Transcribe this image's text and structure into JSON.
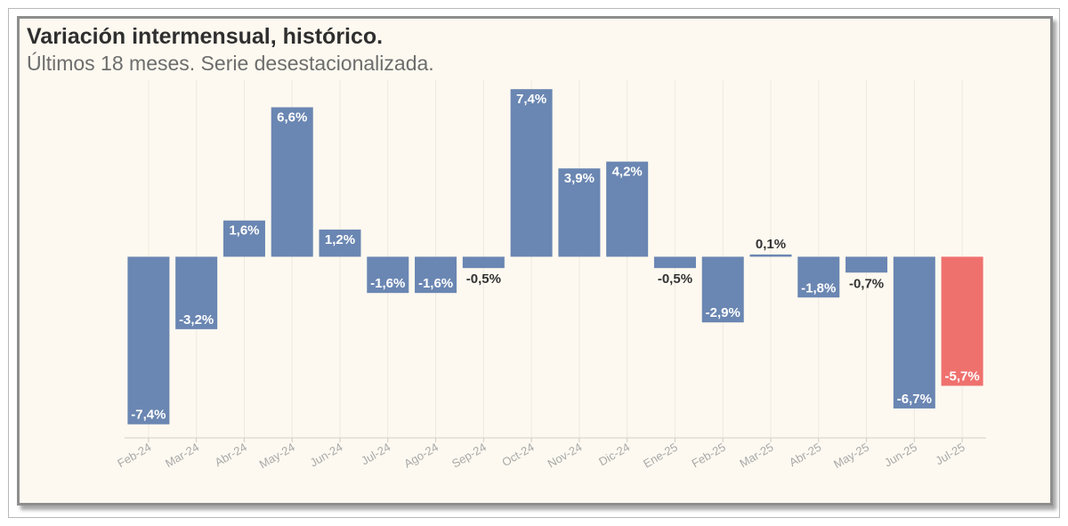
{
  "chart_data": {
    "type": "bar",
    "title": "Variación intermensual, histórico.",
    "subtitle": "Últimos 18 meses. Serie desestacionalizada.",
    "categories": [
      "Feb-24",
      "Mar-24",
      "Abr-24",
      "May-24",
      "Jun-24",
      "Jul-24",
      "Ago-24",
      "Sep-24",
      "Oct-24",
      "Nov-24",
      "Dic-24",
      "Ene-25",
      "Feb-25",
      "Mar-25",
      "Abr-25",
      "May-25",
      "Jun-25",
      "Jul-25"
    ],
    "values": [
      -7.4,
      -3.2,
      1.6,
      6.6,
      1.2,
      -1.6,
      -1.6,
      -0.5,
      7.4,
      3.9,
      4.2,
      -0.5,
      -2.9,
      0.1,
      -1.8,
      -0.7,
      -6.7,
      -5.7
    ],
    "data_labels": [
      "-7,4%",
      "-3,2%",
      "1,6%",
      "6,6%",
      "1,2%",
      "-1,6%",
      "-1,6%",
      "-0,5%",
      "7,4%",
      "3,9%",
      "4,2%",
      "-0,5%",
      "-2,9%",
      "0,1%",
      "-1,8%",
      "-0,7%",
      "-6,7%",
      "-5,7%"
    ],
    "colors": [
      "#6a86b2",
      "#6a86b2",
      "#6a86b2",
      "#6a86b2",
      "#6a86b2",
      "#6a86b2",
      "#6a86b2",
      "#6a86b2",
      "#6a86b2",
      "#6a86b2",
      "#6a86b2",
      "#6a86b2",
      "#6a86b2",
      "#6a86b2",
      "#6a86b2",
      "#6a86b2",
      "#6a86b2",
      "#ef716e"
    ],
    "ylim": [
      -8,
      7.8
    ],
    "grid": {
      "x": true,
      "y": false
    },
    "legend": "none"
  }
}
